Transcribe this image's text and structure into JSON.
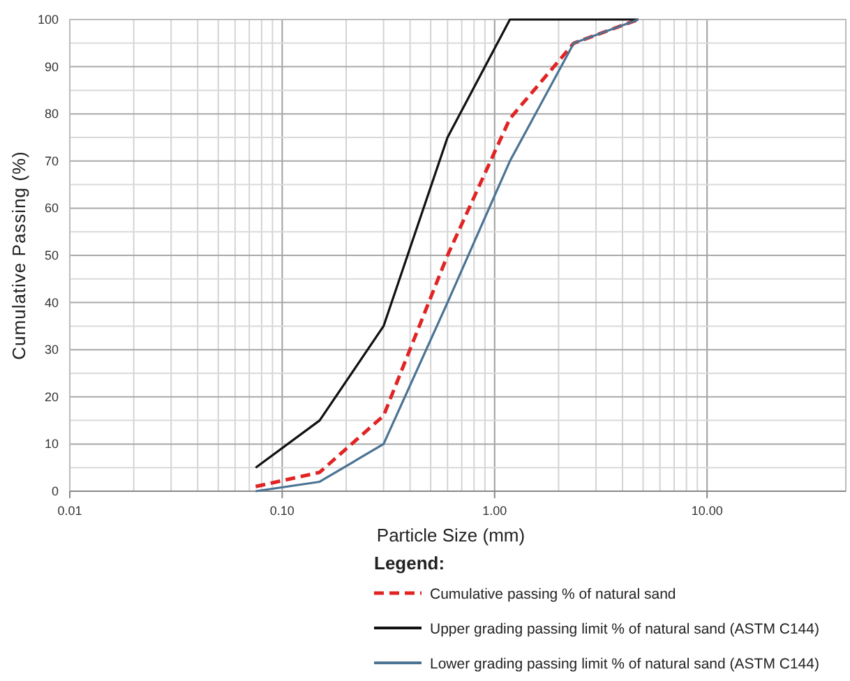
{
  "chart_data": {
    "type": "line",
    "xlabel": "Particle Size (mm)",
    "ylabel": "Cumulative Passing (%)",
    "legend_title": "Legend:",
    "legend": "bottom",
    "grid": true,
    "log": "x",
    "xlim": [
      0.01,
      45
    ],
    "xticks": [
      {
        "value": 0.01,
        "label": "0.01"
      },
      {
        "value": 0.02,
        "label": null
      },
      {
        "value": 0.03,
        "label": null
      },
      {
        "value": 0.04,
        "label": null
      },
      {
        "value": 0.05,
        "label": null
      },
      {
        "value": 0.06,
        "label": null
      },
      {
        "value": 0.07,
        "label": null
      },
      {
        "value": 0.08,
        "label": null
      },
      {
        "value": 0.09,
        "label": null
      },
      {
        "value": 0.1,
        "label": "0.10"
      },
      {
        "value": 0.2,
        "label": null
      },
      {
        "value": 0.3,
        "label": null
      },
      {
        "value": 0.4,
        "label": null
      },
      {
        "value": 0.5,
        "label": null
      },
      {
        "value": 0.6,
        "label": null
      },
      {
        "value": 0.7,
        "label": null
      },
      {
        "value": 0.8,
        "label": null
      },
      {
        "value": 0.9,
        "label": null
      },
      {
        "value": 1,
        "label": "1.00"
      },
      {
        "value": 2,
        "label": null
      },
      {
        "value": 3,
        "label": null
      },
      {
        "value": 4,
        "label": null
      },
      {
        "value": 5,
        "label": null
      },
      {
        "value": 6,
        "label": null
      },
      {
        "value": 7,
        "label": null
      },
      {
        "value": 8,
        "label": null
      },
      {
        "value": 9,
        "label": null
      },
      {
        "value": 10,
        "label": "10.00"
      }
    ],
    "ylim": [
      0,
      100
    ],
    "yticks": [
      0,
      {
        "value": 5,
        "label": null
      },
      10,
      {
        "value": 15,
        "label": null
      },
      20,
      {
        "value": 25,
        "label": null
      },
      30,
      {
        "value": 35,
        "label": null
      },
      40,
      {
        "value": 45,
        "label": null
      },
      50,
      {
        "value": 55,
        "label": null
      },
      60,
      {
        "value": 65,
        "label": null
      },
      70,
      {
        "value": 75,
        "label": null
      },
      80,
      {
        "value": 85,
        "label": null
      },
      90,
      {
        "value": 95,
        "label": null
      },
      100
    ],
    "x": [
      0.075,
      0.15,
      0.3,
      0.6,
      1.18,
      2.36,
      4.75
    ],
    "series": [
      {
        "name": "Cumulative passing % of natural sand",
        "color": "#e02424",
        "line_style": "dashed",
        "values": [
          1,
          4,
          16,
          50,
          79,
          95,
          100
        ]
      },
      {
        "name": "Upper grading passing limit % of natural sand (ASTM C144)",
        "color": "#111111",
        "line_style": "solid",
        "values": [
          5,
          15,
          35,
          75,
          100,
          100,
          100
        ]
      },
      {
        "name": "Lower grading passing limit % of natural sand (ASTM C144)",
        "color": "#4a7394",
        "line_style": "solid",
        "values": [
          0,
          2,
          10,
          40,
          70,
          95,
          100
        ]
      }
    ]
  }
}
